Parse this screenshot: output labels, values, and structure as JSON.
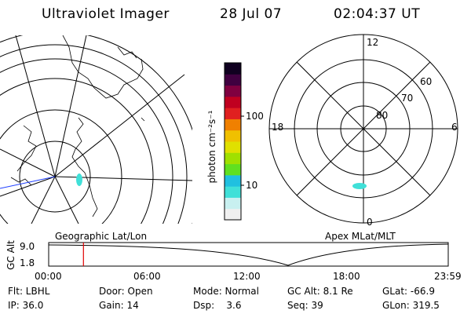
{
  "header": {
    "title": "Ultraviolet Imager",
    "date": "28 Jul 07",
    "time": "02:04:37 UT"
  },
  "geo_map": {
    "label": "Geographic Lat/Lon",
    "icons": [
      "coastline-map-icon",
      "uvi-emission-icon"
    ]
  },
  "apex_map": {
    "label": "Apex MLat/MLT",
    "lat_labels": [
      "80",
      "70",
      "60"
    ],
    "mlt_labels": [
      "12",
      "18",
      "6",
      "0"
    ]
  },
  "colorbar": {
    "unit": "photon cm⁻²s⁻¹",
    "tick_labels": [
      "100",
      "10"
    ],
    "colors": [
      "#f0f0f0",
      "#c8f0f0",
      "#40e0d8",
      "#20c0e0",
      "#60e020",
      "#a0e000",
      "#e0e000",
      "#f0c000",
      "#f08000",
      "#e02020",
      "#c00020",
      "#800040",
      "#400040",
      "#100020"
    ]
  },
  "timeline": {
    "axis_label": "GC Alt",
    "y_labels": [
      "9.0",
      "1.8"
    ],
    "x_labels": [
      "00:00",
      "06:00",
      "12:00",
      "18:00",
      "23:59"
    ],
    "marker_color": "#e00000",
    "current_time_fraction": 0.087
  },
  "info": {
    "row1": [
      "Flt: LBHL",
      "Door: Open",
      "Mode: Normal",
      "GC Alt: 8.1 Re",
      "GLat: -66.9"
    ],
    "row2": [
      "IP: 36.0",
      "Gain: 14",
      "Dsp:    3.6",
      "Seq: 39",
      "GLon: 319.5"
    ]
  }
}
